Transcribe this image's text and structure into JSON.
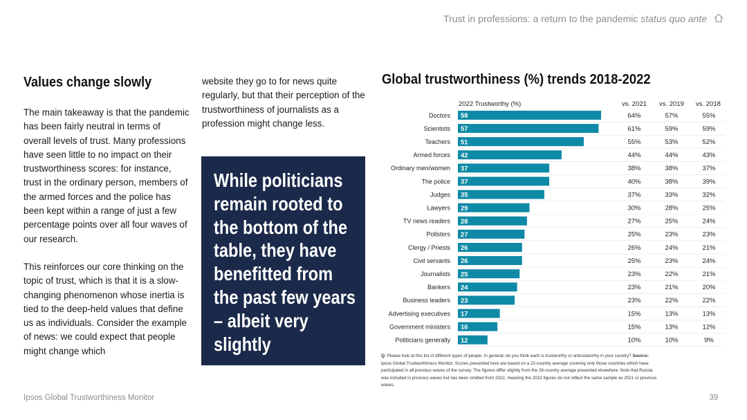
{
  "header": {
    "title_main": "Trust in professions: a return to the pandemic",
    "title_italic": "status quo ante"
  },
  "left": {
    "heading": "Values change slowly",
    "para1": "The main takeaway is that the pandemic has been fairly neutral in terms of overall levels of trust. Many professions have seen little to no impact on their trustworthiness scores: for instance, trust in the ordinary person, members of the armed forces and the police has been kept within a range of just a few percentage points over all four waves of our research.",
    "para2": "This reinforces our core thinking on the topic of trust, which is that it is a slow-changing phenomenon whose inertia is tied to the deep-held values that define us as individuals. Consider the example of news: we could expect that people might change which"
  },
  "middle": {
    "para": "website they go to for news quite regularly, but that their perception of the trustworthiness of journalists as a profession might change less.",
    "quote": "While politicians remain rooted to the bottom of the table, they have benefitted from the past few years – albeit very slightly"
  },
  "chart_data": {
    "type": "bar",
    "title": "Global trustworthiness (%) trends 2018-2022",
    "bar_header": "2022 Trustworthy (%)",
    "comparison_headers": [
      "vs. 2021",
      "vs. 2019",
      "vs. 2018"
    ],
    "categories": [
      "Doctors",
      "Scientists",
      "Teachers",
      "Armed forces",
      "Ordinary men/women",
      "The police",
      "Judges",
      "Lawyers",
      "TV news readers",
      "Pollsters",
      "Clergy / Priests",
      "Civil servants",
      "Journalists",
      "Bankers",
      "Business leaders",
      "Advertising executives",
      "Government ministers",
      "Politicians generally"
    ],
    "values": [
      58,
      57,
      51,
      42,
      37,
      37,
      35,
      29,
      28,
      27,
      26,
      26,
      25,
      24,
      23,
      17,
      16,
      12
    ],
    "vs_2021": [
      "64%",
      "61%",
      "55%",
      "44%",
      "38%",
      "40%",
      "37%",
      "30%",
      "27%",
      "25%",
      "26%",
      "25%",
      "23%",
      "23%",
      "23%",
      "15%",
      "15%",
      "10%"
    ],
    "vs_2019": [
      "57%",
      "59%",
      "53%",
      "44%",
      "38%",
      "38%",
      "33%",
      "28%",
      "25%",
      "23%",
      "24%",
      "23%",
      "22%",
      "21%",
      "22%",
      "13%",
      "13%",
      "10%"
    ],
    "vs_2018": [
      "55%",
      "59%",
      "52%",
      "43%",
      "37%",
      "39%",
      "32%",
      "25%",
      "24%",
      "23%",
      "21%",
      "24%",
      "21%",
      "20%",
      "22%",
      "13%",
      "12%",
      "9%"
    ],
    "bar_color": "#0f8aa6",
    "orientation": "horizontal"
  },
  "footnote": {
    "q_label": "Q:",
    "question": "Please look at this list of different types of people. In general, do you think each is trustworthy or untrustworthy in your country?",
    "source_label": "Source:",
    "source_text": "Ipsos Global Trustworthiness Monitor. Scores presented here are based on a 22-country average covering only those countries which have participated in all previous waves of the survey. The figures differ slightly from the 28-country average presented elsewhere. Note that Russia was included in previous waves but has been omitted from 2022, meaning the 2022 figures do not reflect the same sample as 2021 or previous waves."
  },
  "footer": {
    "left": "Ipsos Global Trustworthiness Monitor",
    "page": "39"
  },
  "colors": {
    "navy": "#1b2a4a",
    "bar": "#0f8aa6"
  },
  "icons": {
    "home": "home-icon"
  }
}
